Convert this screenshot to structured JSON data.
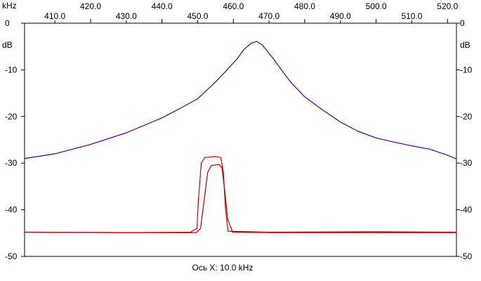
{
  "chart_data": {
    "type": "line",
    "x_unit": "kHz",
    "y_unit": "dB",
    "xlim": [
      401.5,
      522.5
    ],
    "ylim": [
      -50,
      0
    ],
    "x_ticks_upper": [
      "420.0",
      "440.0",
      "460.0",
      "480.0",
      "500.0",
      "520.0"
    ],
    "x_ticks_lower": [
      "410.0",
      "430.0",
      "450.0",
      "470.0",
      "490.0",
      "510.0"
    ],
    "y_ticks": [
      "0",
      "-10",
      "-20",
      "-30",
      "-40",
      "-50"
    ],
    "footer_label": "Ось X: 10.0 kHz",
    "grid": false,
    "series": [
      {
        "color": "#4b0082",
        "x": [
          401.5,
          410,
          420,
          430,
          440,
          445,
          450,
          455,
          458,
          461,
          463,
          465,
          466.5,
          468,
          471,
          473,
          476,
          480,
          485,
          490,
          495,
          500,
          505,
          510,
          515,
          520,
          522.5
        ],
        "y": [
          -29.0,
          -28.0,
          -26.0,
          -23.5,
          -20.3,
          -18.3,
          -16.2,
          -12.6,
          -10.2,
          -7.7,
          -5.6,
          -4.3,
          -3.9,
          -4.6,
          -7.4,
          -9.5,
          -12.6,
          -15.8,
          -18.6,
          -21.2,
          -23.2,
          -24.6,
          -25.5,
          -26.3,
          -27.0,
          -28.3,
          -29.1
        ]
      },
      {
        "color": "#cc0000",
        "x": [
          401.5,
          430,
          448,
          449.8,
          450.2,
          451,
          452,
          455,
          456.5,
          457.2,
          457.8,
          458.5,
          470,
          500,
          522.5
        ],
        "y": [
          -44.8,
          -44.9,
          -44.8,
          -44.0,
          -38.0,
          -30.0,
          -28.8,
          -28.6,
          -28.8,
          -32.0,
          -40.0,
          -44.6,
          -44.8,
          -44.7,
          -44.8
        ]
      },
      {
        "color": "#aa0000",
        "x": [
          401.5,
          430,
          449.6,
          450.8,
          451.8,
          452.8,
          453.8,
          456,
          456.8,
          457.6,
          458.4,
          459.8,
          470,
          500,
          522.5
        ],
        "y": [
          -44.8,
          -44.9,
          -44.9,
          -44.0,
          -38.0,
          -32.0,
          -30.5,
          -30.3,
          -31.0,
          -36.0,
          -42.0,
          -44.8,
          -44.9,
          -44.9,
          -44.9
        ]
      }
    ]
  }
}
